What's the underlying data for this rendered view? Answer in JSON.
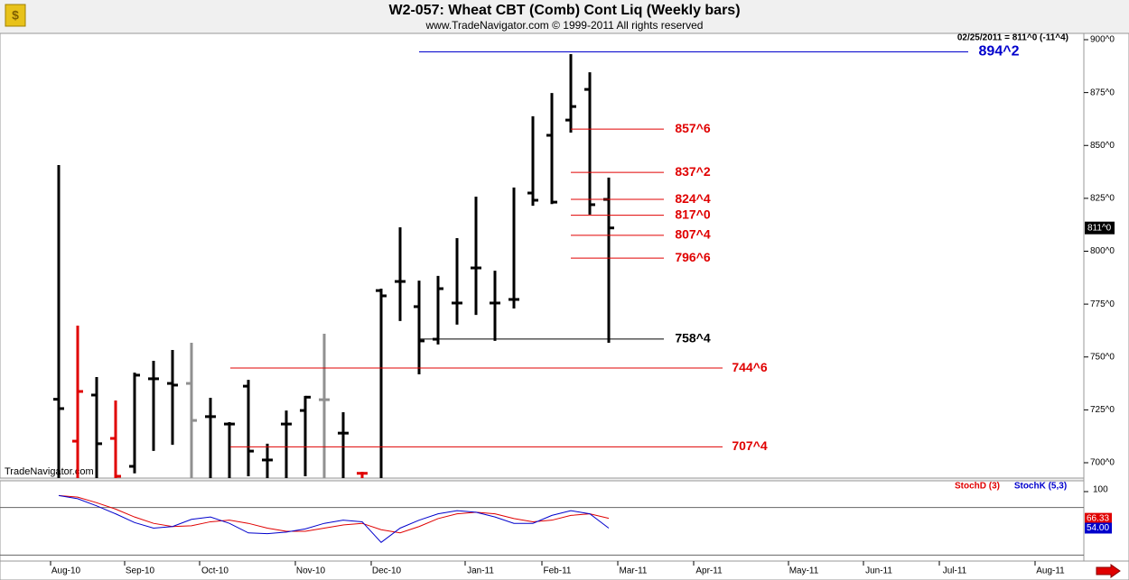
{
  "chart_data": {
    "type": "ohlc",
    "title": "W2-057:  Wheat CBT (Comb) Cont Liq  (Weekly bars)",
    "subtitle": "www.TradeNavigator.com © 1999-2011 All rights reserved",
    "info": "02/25/2011 = 811^0 (-11^4)",
    "last_price_label": "811^0",
    "last_price": 811,
    "watermark": "TradeNavigator.com",
    "xlabels": [
      "Aug-10",
      "Sep-10",
      "Oct-10",
      "Nov-10",
      "Dec-10",
      "Jan-11",
      "Feb-11",
      "Mar-11",
      "Apr-11",
      "May-11",
      "Jun-11",
      "Jul-11",
      "Aug-11"
    ],
    "open": [
      730,
      710.2,
      732,
      711.5,
      698.3,
      739.7,
      737.5,
      737.5,
      721.8,
      718.3,
      736.2,
      701.3,
      718.3,
      724.7,
      729.8,
      714,
      695,
      781.4,
      785.7,
      773.8,
      758.4,
      775.5,
      792.1,
      775.5,
      777.2,
      827.5,
      854.8,
      862,
      876.5,
      824.5
    ],
    "high": [
      840.7,
      764.8,
      740.5,
      729.4,
      742.6,
      748.2,
      753.3,
      756.7,
      730.7,
      719.2,
      739.2,
      709,
      724.7,
      731.6,
      761,
      723.9,
      695.7,
      782.3,
      811.3,
      786.1,
      788.3,
      806.2,
      825.8,
      790.8,
      830.1,
      863.8,
      874.8,
      893.2,
      884.6,
      834.8
    ],
    "low": [
      690,
      690,
      690,
      690,
      695,
      705.6,
      708.5,
      690,
      690,
      690,
      693.6,
      690,
      690,
      693.6,
      690,
      690,
      690,
      690,
      767,
      741.8,
      755.9,
      765.3,
      769.9,
      757.6,
      772.9,
      821.5,
      822.3,
      856.1,
      817.3,
      756.7
    ],
    "close": [
      725.6,
      733.7,
      709,
      693.6,
      741.4,
      739.7,
      736.7,
      720,
      721.8,
      718.3,
      705.5,
      701.3,
      718.3,
      731,
      729.8,
      714,
      695,
      778.9,
      785.7,
      757.6,
      782.3,
      775.5,
      792.1,
      775.5,
      777.2,
      824.1,
      823.2,
      868.4,
      822,
      811
    ],
    "colors": [
      "#000000",
      "#e00000",
      "#000000",
      "#e00000",
      "#000000",
      "#000000",
      "#000000",
      "#909090",
      "#000000",
      "#000000",
      "#000000",
      "#000000",
      "#000000",
      "#000000",
      "#909090",
      "#000000",
      "#e00000",
      "#000000",
      "#000000",
      "#000000",
      "#000000",
      "#000000",
      "#000000",
      "#000000",
      "#000000",
      "#000000",
      "#000000",
      "#000000",
      "#000000",
      "#000000"
    ],
    "ylim": [
      700,
      900
    ],
    "yticks": [
      {
        "value": 700,
        "label": "700^0"
      },
      {
        "value": 725,
        "label": "725^0"
      },
      {
        "value": 750,
        "label": "750^0"
      },
      {
        "value": 775,
        "label": "775^0"
      },
      {
        "value": 800,
        "label": "800^0"
      },
      {
        "value": 825,
        "label": "825^0"
      },
      {
        "value": 850,
        "label": "850^0"
      },
      {
        "value": 875,
        "label": "875^0"
      },
      {
        "value": 900,
        "label": "900^0"
      }
    ],
    "levels": [
      {
        "value": 894.25,
        "label": "894^2",
        "color": "#0000cc"
      },
      {
        "value": 857.75,
        "label": "857^6",
        "color": "#e00000"
      },
      {
        "value": 837.25,
        "label": "837^2",
        "color": "#e00000"
      },
      {
        "value": 824.5,
        "label": "824^4",
        "color": "#e00000"
      },
      {
        "value": 817,
        "label": "817^0",
        "color": "#e00000"
      },
      {
        "value": 807.5,
        "label": "807^4",
        "color": "#e00000"
      },
      {
        "value": 796.75,
        "label": "796^6",
        "color": "#e00000"
      },
      {
        "value": 758.5,
        "label": "758^4",
        "color": "#000000"
      },
      {
        "value": 744.75,
        "label": "744^6",
        "color": "#e00000"
      },
      {
        "value": 707.5,
        "label": "707^4",
        "color": "#e00000"
      }
    ],
    "y2lim": [
      0,
      100
    ],
    "y2ticks": [
      100
    ],
    "y2guides": [
      20,
      80
    ],
    "series": [
      {
        "name": "StochD (3)",
        "color": "#e00000",
        "axis": "y2",
        "values": [
          95,
          93,
          86,
          78,
          68,
          60,
          56,
          57,
          62,
          64,
          60,
          54,
          50,
          50,
          54,
          58,
          60,
          52,
          48,
          56,
          66,
          72,
          74,
          72,
          66,
          62,
          64,
          70,
          72,
          66.33
        ],
        "value_labels": [
          null,
          null,
          null,
          null,
          null,
          null,
          null,
          null,
          null,
          null,
          null,
          null,
          null,
          null,
          null,
          null,
          null,
          null,
          null,
          null,
          null,
          null,
          null,
          null,
          null,
          null,
          null,
          null,
          null,
          "66.33"
        ]
      },
      {
        "name": "StochK (5,3)",
        "color": "#0000cc",
        "axis": "y2",
        "values": [
          95,
          91,
          82,
          72,
          61,
          54,
          56,
          65,
          68,
          60,
          48,
          47,
          49,
          53,
          60,
          64,
          62,
          36,
          54,
          64,
          72,
          76,
          74,
          68,
          60,
          60,
          70,
          76,
          72,
          54
        ],
        "value_labels": [
          null,
          null,
          null,
          null,
          null,
          null,
          null,
          null,
          null,
          null,
          null,
          null,
          null,
          null,
          null,
          null,
          null,
          null,
          null,
          null,
          null,
          null,
          null,
          null,
          null,
          null,
          null,
          null,
          null,
          "54.00"
        ]
      }
    ]
  }
}
